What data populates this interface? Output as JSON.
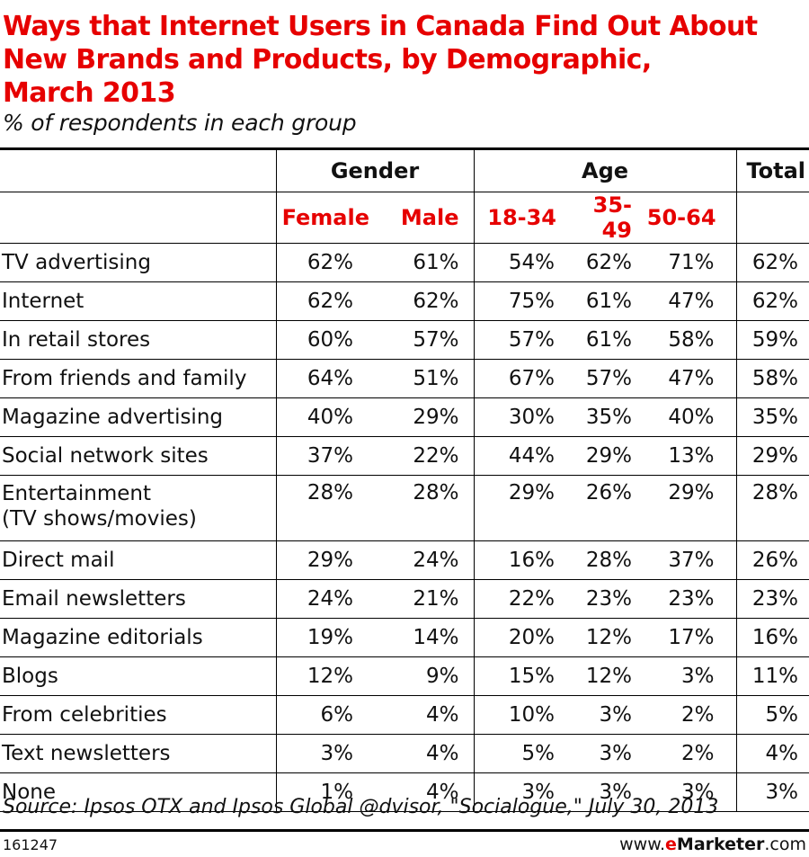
{
  "title_lines": [
    "Ways that Internet Users in Canada Find Out About",
    "New Brands and Products, by Demographic,",
    "March 2013"
  ],
  "subtitle": "% of respondents in each group",
  "chart_data": {
    "type": "table",
    "title": "Ways that Internet Users in Canada Find Out About New Brands and Products, by Demographic, March 2013",
    "subtitle": "% of respondents in each group",
    "group_headers": [
      "Gender",
      "Age",
      "Total"
    ],
    "columns": [
      "Female",
      "Male",
      "18-34",
      "35-49",
      "50-64",
      "Total"
    ],
    "rows": [
      {
        "label": "TV advertising",
        "values": [
          "62%",
          "61%",
          "54%",
          "62%",
          "71%",
          "62%"
        ]
      },
      {
        "label": "Internet",
        "values": [
          "62%",
          "62%",
          "75%",
          "61%",
          "47%",
          "62%"
        ]
      },
      {
        "label": "In retail stores",
        "values": [
          "60%",
          "57%",
          "57%",
          "61%",
          "58%",
          "59%"
        ]
      },
      {
        "label": "From friends and family",
        "values": [
          "64%",
          "51%",
          "67%",
          "57%",
          "47%",
          "58%"
        ]
      },
      {
        "label": "Magazine advertising",
        "values": [
          "40%",
          "29%",
          "30%",
          "35%",
          "40%",
          "35%"
        ]
      },
      {
        "label": "Social network sites",
        "values": [
          "37%",
          "22%",
          "44%",
          "29%",
          "13%",
          "29%"
        ]
      },
      {
        "label": "Entertainment",
        "label2": "(TV shows/movies)",
        "values": [
          "28%",
          "28%",
          "29%",
          "26%",
          "29%",
          "28%"
        ]
      },
      {
        "label": "Direct mail",
        "values": [
          "29%",
          "24%",
          "16%",
          "28%",
          "37%",
          "26%"
        ]
      },
      {
        "label": "Email newsletters",
        "values": [
          "24%",
          "21%",
          "22%",
          "23%",
          "23%",
          "23%"
        ]
      },
      {
        "label": "Magazine editorials",
        "values": [
          "19%",
          "14%",
          "20%",
          "12%",
          "17%",
          "16%"
        ]
      },
      {
        "label": "Blogs",
        "values": [
          "12%",
          "9%",
          "15%",
          "12%",
          "3%",
          "11%"
        ]
      },
      {
        "label": "From celebrities",
        "values": [
          "6%",
          "4%",
          "10%",
          "3%",
          "2%",
          "5%"
        ]
      },
      {
        "label": "Text newsletters",
        "values": [
          "3%",
          "4%",
          "5%",
          "3%",
          "2%",
          "4%"
        ]
      },
      {
        "label": "None",
        "values": [
          "1%",
          "4%",
          "3%",
          "3%",
          "3%",
          "3%"
        ]
      }
    ]
  },
  "source": "Source: Ipsos OTX and Ipsos Global @dvisor, \"Socialogue,\" July 30, 2013",
  "chart_id": "161247",
  "brand": {
    "prefix": "www.",
    "e": "e",
    "name": "Marketer",
    "suffix": ".com"
  },
  "colors": {
    "accent": "#e60000",
    "text": "#111111"
  }
}
